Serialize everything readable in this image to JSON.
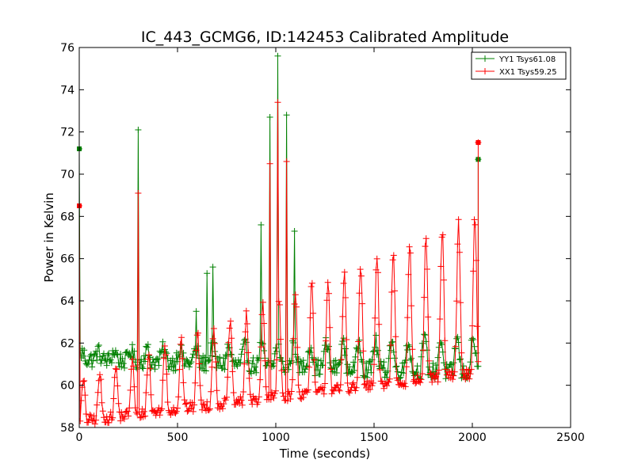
{
  "chart_data": {
    "type": "line",
    "title": "IC_443_GCMG6, ID:142453 Calibrated Amplitude",
    "xlabel": "Time (seconds)",
    "ylabel": "Power in Kelvin",
    "xlim": [
      0,
      2500
    ],
    "ylim": [
      58,
      76
    ],
    "xticks": [
      0,
      500,
      1000,
      1500,
      2000,
      2500
    ],
    "yticks": [
      58,
      60,
      62,
      64,
      66,
      68,
      70,
      72,
      74,
      76
    ],
    "grid": false,
    "legend_position": "top-right",
    "marker": "plus",
    "series": [
      {
        "name": "YY1 Tsys61.08",
        "color": "#008000",
        "start_point": [
          0,
          71.2
        ],
        "end_point": [
          2030,
          70.7
        ],
        "baseline": {
          "t0": 0,
          "v0": 61.3,
          "t1": 2030,
          "v1": 60.9
        },
        "oscillation": {
          "period_s": 83,
          "amplitude_start": 0.3,
          "amplitude_end": 1.6
        },
        "spikes": [
          {
            "x": 300,
            "y": 72.1
          },
          {
            "x": 650,
            "y": 65.3
          },
          {
            "x": 680,
            "y": 65.6
          },
          {
            "x": 595,
            "y": 63.5
          },
          {
            "x": 925,
            "y": 67.6
          },
          {
            "x": 970,
            "y": 72.7
          },
          {
            "x": 1010,
            "y": 75.6
          },
          {
            "x": 1055,
            "y": 72.8
          },
          {
            "x": 1095,
            "y": 67.3
          }
        ]
      },
      {
        "name": "XX1 Tsys59.25",
        "color": "#ff0000",
        "start_point": [
          0,
          68.5
        ],
        "end_point": [
          2030,
          71.5
        ],
        "baseline": {
          "t0": 0,
          "v0": 58.3,
          "t1": 2030,
          "v1": 60.6
        },
        "oscillation": {
          "period_s": 83,
          "amplitude_start": 1.8,
          "amplitude_end": 7.5
        },
        "spikes": [
          {
            "x": 300,
            "y": 69.1
          },
          {
            "x": 970,
            "y": 70.5
          },
          {
            "x": 1010,
            "y": 73.4
          },
          {
            "x": 1055,
            "y": 70.6
          }
        ]
      }
    ]
  }
}
